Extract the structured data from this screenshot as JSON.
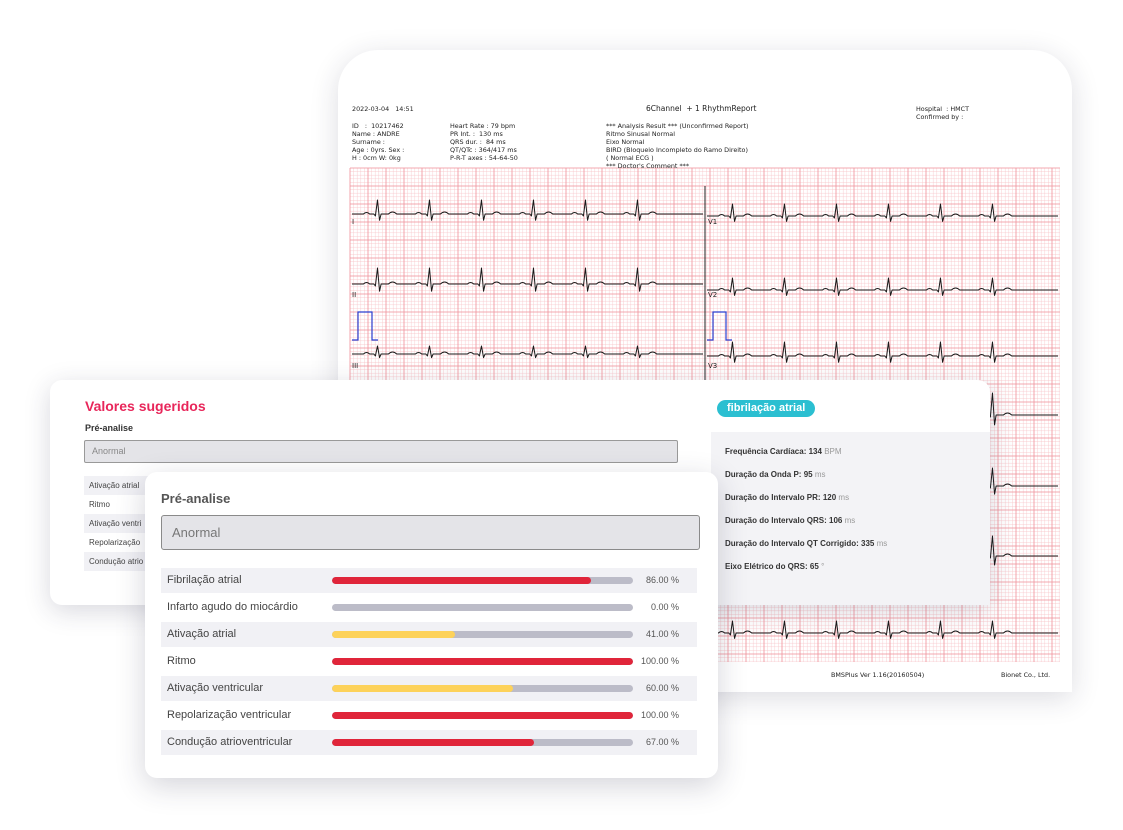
{
  "ecg": {
    "date": "2022-03-04   14:51",
    "report_title": "6Channel  + 1 RhythmReport",
    "hospital": "Hospital  : HMCT",
    "confirmed_by": "Confirmed by :",
    "patient": [
      "ID   :  10217462",
      "Name : ANDRE",
      "Surname :",
      "Age : 0yrs. Sex :",
      "H : 0cm W: 0kg"
    ],
    "measures": [
      "Heart Rate : 79 bpm",
      "PR Int. :  130 ms",
      "QRS dur. :  84 ms",
      "QT/QTc : 364/417 ms",
      "P-R-T axes : 54-64-50"
    ],
    "analysis": [
      "*** Analysis Result *** (Unconfirmed Report)",
      "Ritmo Sinusal Normal",
      "Eixo Normal",
      "BIRD (Bloqueio Incompleto do Ramo Direito)",
      "( Normal ECG )",
      "*** Doctor's Comment ***"
    ],
    "leads_left": [
      "I",
      "II",
      "III"
    ],
    "leads_right": [
      "V1",
      "V2",
      "V3"
    ],
    "footer_version": "BMSPlus Ver 1.16(20160504)",
    "footer_company": "Bionet Co., Ltd."
  },
  "suggested": {
    "title": "Valores sugeridos",
    "pre_label": "Pré-analise",
    "input_value": "Anormal",
    "rows": [
      "Ativação atrial",
      "Ritmo",
      "Ativação ventri",
      "Repolarização",
      "Condução atrio"
    ]
  },
  "info": {
    "badge": "fibrilação atrial",
    "lines": [
      {
        "label": "Frequência Cardíaca:",
        "value": "134",
        "unit": "BPM"
      },
      {
        "label": "Duração da Onda P:",
        "value": "95",
        "unit": "ms"
      },
      {
        "label": "Duração do Intervalo PR:",
        "value": "120",
        "unit": "ms"
      },
      {
        "label": "Duração do Intervalo QRS:",
        "value": "106",
        "unit": "ms"
      },
      {
        "label": "Duração do Intervalo QT Corrigido:",
        "value": "335",
        "unit": "ms"
      },
      {
        "label": "Eixo Elétrico do QRS:",
        "value": "65",
        "unit": "°"
      }
    ]
  },
  "preanalysis": {
    "label": "Pré-analise",
    "input_value": "Anormal",
    "rows": [
      {
        "label": "Fibrilação atrial",
        "percent": 86.0,
        "display": "86.00 %",
        "color": "#e0253a"
      },
      {
        "label": "Infarto agudo do miocárdio",
        "percent": 0.0,
        "display": "0.00 %",
        "color": "#e0253a"
      },
      {
        "label": "Ativação atrial",
        "percent": 41.0,
        "display": "41.00 %",
        "color": "#fdd25a"
      },
      {
        "label": "Ritmo",
        "percent": 100.0,
        "display": "100.00 %",
        "color": "#e0253a"
      },
      {
        "label": "Ativação ventricular",
        "percent": 60.0,
        "display": "60.00 %",
        "color": "#fdd25a"
      },
      {
        "label": "Repolarização ventricular",
        "percent": 100.0,
        "display": "100.00 %",
        "color": "#e0253a"
      },
      {
        "label": "Condução atrioventricular",
        "percent": 67.0,
        "display": "67.00 %",
        "color": "#e0253a"
      }
    ]
  }
}
